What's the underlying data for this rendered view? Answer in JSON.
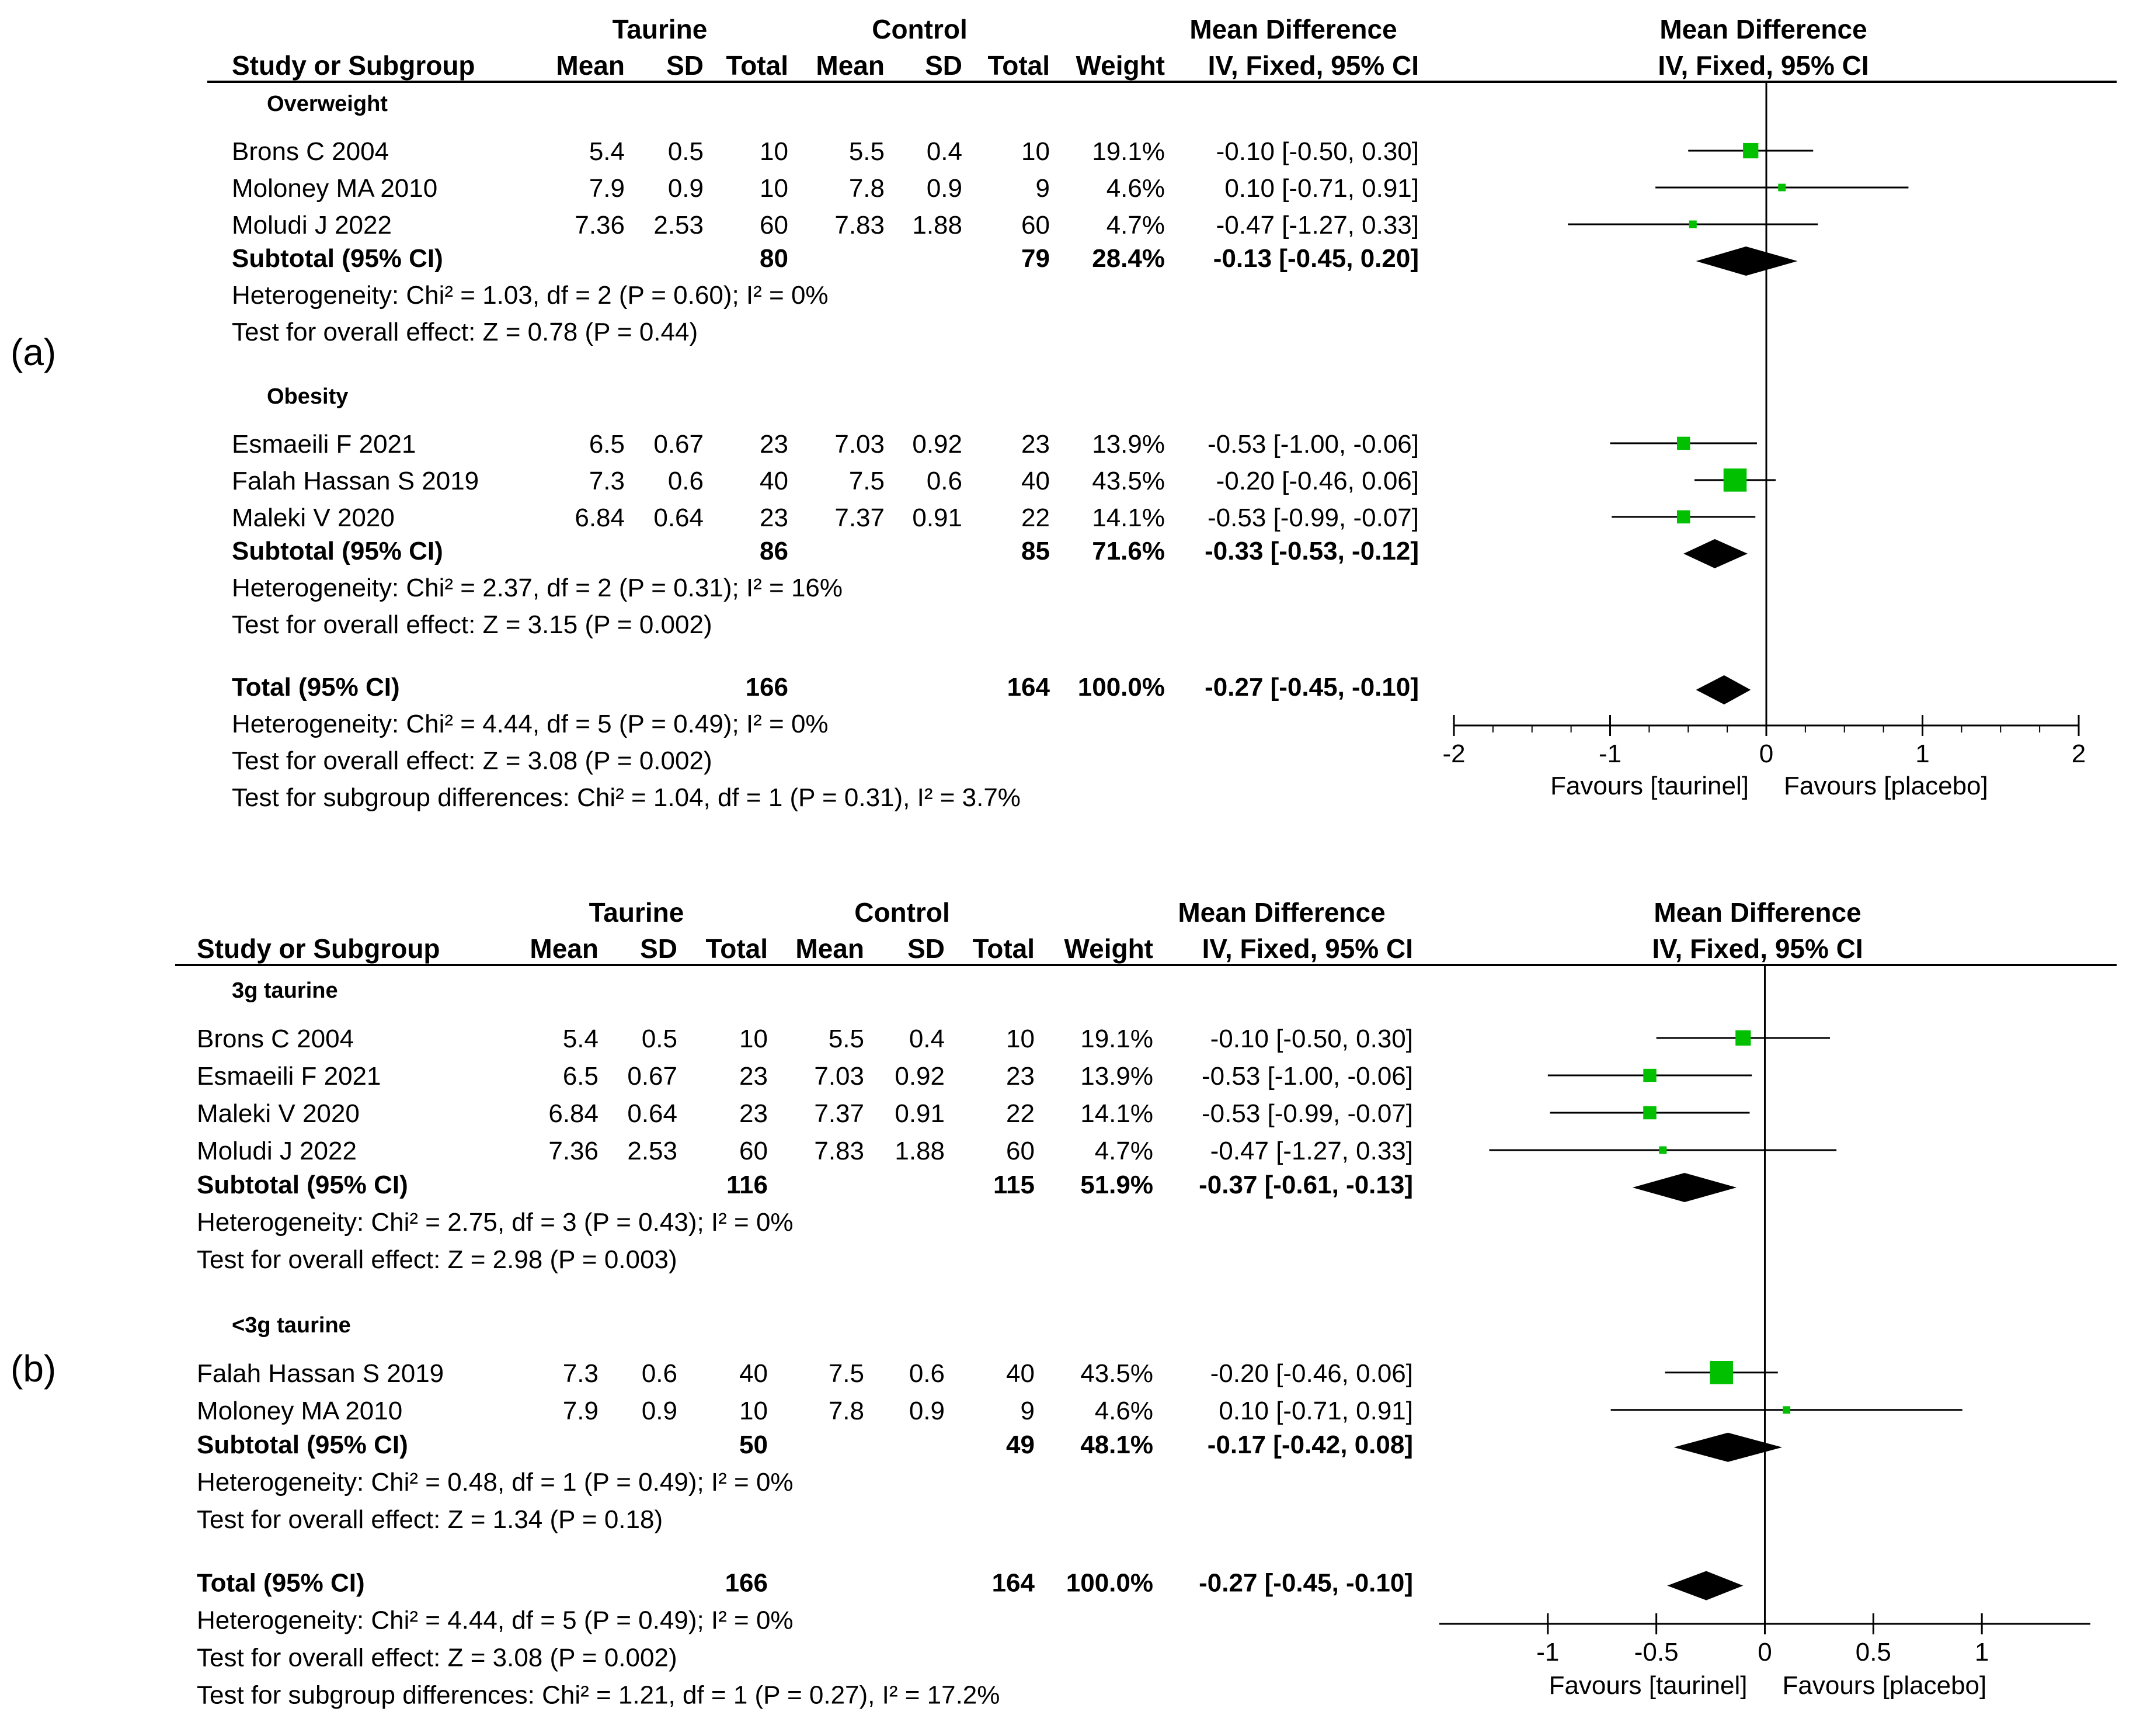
{
  "figure_labels": [
    "(a)",
    "(b)"
  ],
  "chart_data": [
    {
      "type": "forest",
      "panel_label": "(a)",
      "group_headers": {
        "experimental": "Taurine",
        "control": "Control",
        "effect": "Mean Difference",
        "plot": "Mean Difference"
      },
      "columns": [
        "Study or Subgroup",
        "Mean",
        "SD",
        "Total",
        "Mean",
        "SD",
        "Total",
        "Weight",
        "IV, Fixed, 95% CI"
      ],
      "plot_subheader": "IV, Fixed, 95% CI",
      "subgroups": [
        {
          "name": "Overweight",
          "studies": [
            {
              "study": "Brons C 2004",
              "exp_mean": "5.4",
              "exp_sd": "0.5",
              "exp_total": "10",
              "ctl_mean": "5.5",
              "ctl_sd": "0.4",
              "ctl_total": "10",
              "weight": "19.1%",
              "ci": "-0.10 [-0.50, 0.30]",
              "md": -0.1,
              "lo": -0.5,
              "hi": 0.3
            },
            {
              "study": "Moloney MA 2010",
              "exp_mean": "7.9",
              "exp_sd": "0.9",
              "exp_total": "10",
              "ctl_mean": "7.8",
              "ctl_sd": "0.9",
              "ctl_total": "9",
              "weight": "4.6%",
              "ci": "0.10 [-0.71, 0.91]",
              "md": 0.1,
              "lo": -0.71,
              "hi": 0.91
            },
            {
              "study": "Moludi J 2022",
              "exp_mean": "7.36",
              "exp_sd": "2.53",
              "exp_total": "60",
              "ctl_mean": "7.83",
              "ctl_sd": "1.88",
              "ctl_total": "60",
              "weight": "4.7%",
              "ci": "-0.47 [-1.27, 0.33]",
              "md": -0.47,
              "lo": -1.27,
              "hi": 0.33
            }
          ],
          "subtotal": {
            "label": "Subtotal (95% CI)",
            "exp_total": "80",
            "ctl_total": "79",
            "weight": "28.4%",
            "ci": "-0.13 [-0.45, 0.20]",
            "md": -0.13,
            "lo": -0.45,
            "hi": 0.2
          },
          "heterogeneity": "Heterogeneity: Chi² = 1.03, df = 2 (P = 0.60); I² = 0%",
          "overall_effect": "Test for overall effect: Z = 0.78 (P = 0.44)"
        },
        {
          "name": "Obesity",
          "studies": [
            {
              "study": "Esmaeili F 2021",
              "exp_mean": "6.5",
              "exp_sd": "0.67",
              "exp_total": "23",
              "ctl_mean": "7.03",
              "ctl_sd": "0.92",
              "ctl_total": "23",
              "weight": "13.9%",
              "ci": "-0.53 [-1.00, -0.06]",
              "md": -0.53,
              "lo": -1.0,
              "hi": -0.06
            },
            {
              "study": "Falah Hassan S 2019",
              "exp_mean": "7.3",
              "exp_sd": "0.6",
              "exp_total": "40",
              "ctl_mean": "7.5",
              "ctl_sd": "0.6",
              "ctl_total": "40",
              "weight": "43.5%",
              "ci": "-0.20 [-0.46, 0.06]",
              "md": -0.2,
              "lo": -0.46,
              "hi": 0.06
            },
            {
              "study": "Maleki V 2020",
              "exp_mean": "6.84",
              "exp_sd": "0.64",
              "exp_total": "23",
              "ctl_mean": "7.37",
              "ctl_sd": "0.91",
              "ctl_total": "22",
              "weight": "14.1%",
              "ci": "-0.53 [-0.99, -0.07]",
              "md": -0.53,
              "lo": -0.99,
              "hi": -0.07
            }
          ],
          "subtotal": {
            "label": "Subtotal (95% CI)",
            "exp_total": "86",
            "ctl_total": "85",
            "weight": "71.6%",
            "ci": "-0.33 [-0.53, -0.12]",
            "md": -0.33,
            "lo": -0.53,
            "hi": -0.12
          },
          "heterogeneity": "Heterogeneity: Chi² = 2.37, df = 2 (P = 0.31); I² = 16%",
          "overall_effect": "Test for overall effect: Z = 3.15 (P = 0.002)"
        }
      ],
      "total": {
        "label": "Total (95% CI)",
        "exp_total": "166",
        "ctl_total": "164",
        "weight": "100.0%",
        "ci": "-0.27 [-0.45, -0.10]",
        "md": -0.27,
        "lo": -0.45,
        "hi": -0.1
      },
      "footer": [
        "Heterogeneity: Chi² = 4.44, df = 5 (P = 0.49); I² = 0%",
        "Test for overall effect: Z = 3.08 (P = 0.002)",
        "Test for subgroup differences: Chi² = 1.04, df = 1 (P = 0.31), I² = 3.7%"
      ],
      "xlim": [
        -2,
        2
      ],
      "xticks": [
        -2,
        -1,
        0,
        1,
        2
      ],
      "xtick_labels": [
        "-2",
        "-1",
        "0",
        "1",
        "2"
      ],
      "minor_ticks": true,
      "favours_left": "Favours [taurinel]",
      "favours_right": "Favours [placebo]",
      "marker_color": "#00c000"
    },
    {
      "type": "forest",
      "panel_label": "(b)",
      "group_headers": {
        "experimental": "Taurine",
        "control": "Control",
        "effect": "Mean Difference",
        "plot": "Mean Difference"
      },
      "columns": [
        "Study or Subgroup",
        "Mean",
        "SD",
        "Total",
        "Mean",
        "SD",
        "Total",
        "Weight",
        "IV, Fixed, 95% CI"
      ],
      "plot_subheader": "IV, Fixed, 95% CI",
      "subgroups": [
        {
          "name": "3g taurine",
          "studies": [
            {
              "study": "Brons C 2004",
              "exp_mean": "5.4",
              "exp_sd": "0.5",
              "exp_total": "10",
              "ctl_mean": "5.5",
              "ctl_sd": "0.4",
              "ctl_total": "10",
              "weight": "19.1%",
              "ci": "-0.10 [-0.50, 0.30]",
              "md": -0.1,
              "lo": -0.5,
              "hi": 0.3
            },
            {
              "study": "Esmaeili F 2021",
              "exp_mean": "6.5",
              "exp_sd": "0.67",
              "exp_total": "23",
              "ctl_mean": "7.03",
              "ctl_sd": "0.92",
              "ctl_total": "23",
              "weight": "13.9%",
              "ci": "-0.53 [-1.00, -0.06]",
              "md": -0.53,
              "lo": -1.0,
              "hi": -0.06
            },
            {
              "study": "Maleki V 2020",
              "exp_mean": "6.84",
              "exp_sd": "0.64",
              "exp_total": "23",
              "ctl_mean": "7.37",
              "ctl_sd": "0.91",
              "ctl_total": "22",
              "weight": "14.1%",
              "ci": "-0.53 [-0.99, -0.07]",
              "md": -0.53,
              "lo": -0.99,
              "hi": -0.07
            },
            {
              "study": "Moludi J 2022",
              "exp_mean": "7.36",
              "exp_sd": "2.53",
              "exp_total": "60",
              "ctl_mean": "7.83",
              "ctl_sd": "1.88",
              "ctl_total": "60",
              "weight": "4.7%",
              "ci": "-0.47 [-1.27, 0.33]",
              "md": -0.47,
              "lo": -1.27,
              "hi": 0.33
            }
          ],
          "subtotal": {
            "label": "Subtotal (95% CI)",
            "exp_total": "116",
            "ctl_total": "115",
            "weight": "51.9%",
            "ci": "-0.37 [-0.61, -0.13]",
            "md": -0.37,
            "lo": -0.61,
            "hi": -0.13
          },
          "heterogeneity": "Heterogeneity: Chi² = 2.75, df = 3 (P = 0.43); I² = 0%",
          "overall_effect": "Test for overall effect: Z = 2.98 (P = 0.003)"
        },
        {
          "name": "<3g taurine",
          "studies": [
            {
              "study": "Falah Hassan S 2019",
              "exp_mean": "7.3",
              "exp_sd": "0.6",
              "exp_total": "40",
              "ctl_mean": "7.5",
              "ctl_sd": "0.6",
              "ctl_total": "40",
              "weight": "43.5%",
              "ci": "-0.20 [-0.46, 0.06]",
              "md": -0.2,
              "lo": -0.46,
              "hi": 0.06
            },
            {
              "study": "Moloney MA 2010",
              "exp_mean": "7.9",
              "exp_sd": "0.9",
              "exp_total": "10",
              "ctl_mean": "7.8",
              "ctl_sd": "0.9",
              "ctl_total": "9",
              "weight": "4.6%",
              "ci": "0.10 [-0.71, 0.91]",
              "md": 0.1,
              "lo": -0.71,
              "hi": 0.91
            }
          ],
          "subtotal": {
            "label": "Subtotal (95% CI)",
            "exp_total": "50",
            "ctl_total": "49",
            "weight": "48.1%",
            "ci": "-0.17 [-0.42, 0.08]",
            "md": -0.17,
            "lo": -0.42,
            "hi": 0.08
          },
          "heterogeneity": "Heterogeneity: Chi² = 0.48, df = 1 (P = 0.49); I² = 0%",
          "overall_effect": "Test for overall effect: Z = 1.34 (P = 0.18)"
        }
      ],
      "total": {
        "label": "Total (95% CI)",
        "exp_total": "166",
        "ctl_total": "164",
        "weight": "100.0%",
        "ci": "-0.27 [-0.45, -0.10]",
        "md": -0.27,
        "lo": -0.45,
        "hi": -0.1
      },
      "footer": [
        "Heterogeneity: Chi² = 4.44, df = 5 (P = 0.49); I² = 0%",
        "Test for overall effect: Z = 3.08 (P = 0.002)",
        "Test for subgroup differences: Chi² = 1.21, df = 1 (P = 0.27), I² = 17.2%"
      ],
      "xlim": [
        -1.5,
        1.5
      ],
      "xticks": [
        -1,
        -0.5,
        0,
        0.5,
        1
      ],
      "xtick_labels": [
        "-1",
        "-0.5",
        "0",
        "0.5",
        "1"
      ],
      "minor_ticks": false,
      "favours_left": "Favours [taurinel]",
      "favours_right": "Favours [placebo]",
      "marker_color": "#00c000"
    }
  ]
}
